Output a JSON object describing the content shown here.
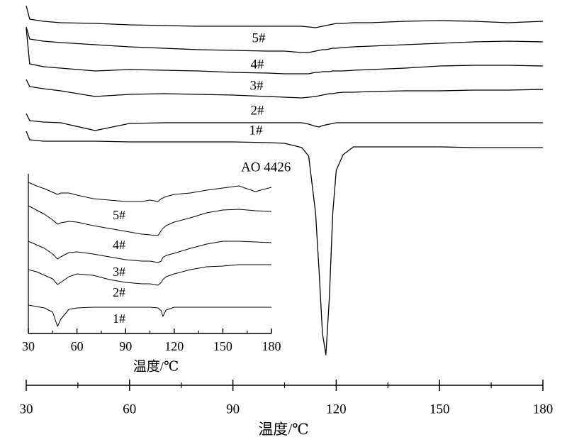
{
  "chart_data": [
    {
      "type": "line",
      "xlabel": "温度/℃",
      "x": [
        30,
        31,
        35,
        40,
        50,
        60,
        70,
        80,
        90,
        100,
        105,
        110,
        112,
        114,
        115,
        116,
        117,
        118,
        119,
        120,
        122,
        125,
        130,
        140,
        150,
        160,
        170,
        180
      ],
      "xlim": [
        30,
        180
      ],
      "xticks": [
        30,
        60,
        90,
        120,
        150,
        180
      ],
      "xminorticks": [
        45,
        75,
        105,
        135,
        165
      ],
      "ylim": [
        0,
        51
      ],
      "series": [
        {
          "name": "5#",
          "color": "#000000",
          "values": [
            50.2,
            48.3,
            48,
            47.8,
            47.7,
            47.5,
            47.4,
            47.3,
            47.3,
            47.3,
            47.3,
            47.3,
            47.2,
            47.1,
            47.2,
            47.3,
            47.4,
            47.5,
            47.6,
            47.7,
            47.7,
            47.8,
            47.8,
            48,
            48.1,
            48,
            47.8,
            48
          ]
        },
        {
          "name": "4#",
          "color": "#000000",
          "values": [
            47.2,
            45.5,
            45.2,
            45,
            44.7,
            44.4,
            44.2,
            44,
            43.9,
            43.8,
            43.8,
            43.6,
            43.6,
            43.8,
            43.9,
            44,
            44,
            44.1,
            44.2,
            44.2,
            44.3,
            44.4,
            44.5,
            44.7,
            44.9,
            45.1,
            45.2,
            45.1
          ]
        },
        {
          "name": "3#",
          "color": "#000000",
          "values": [
            47,
            42,
            41.6,
            41.4,
            41,
            41.2,
            41.1,
            41,
            40.8,
            40.7,
            40.6,
            40.6,
            40.6,
            40.8,
            40.8,
            40.9,
            40.9,
            40.9,
            41,
            41,
            41,
            41.1,
            41.2,
            41.4,
            41.7,
            41.8,
            41.8,
            41.7
          ]
        },
        {
          "name": "2#",
          "color": "#000000",
          "values": [
            39.8,
            38.8,
            38.5,
            38.2,
            37.4,
            37.7,
            37.8,
            37.7,
            37.6,
            37.4,
            37.3,
            37.2,
            37.3,
            37.4,
            37.5,
            37.6,
            37.7,
            37.8,
            37.8,
            37.9,
            38,
            38,
            38.1,
            38.2,
            38.2,
            38.3,
            38.3,
            38.4
          ]
        },
        {
          "name": "1#",
          "color": "#000000",
          "values": [
            35,
            34,
            33.8,
            33.7,
            32.6,
            33.6,
            33.7,
            33.7,
            33.7,
            33.7,
            33.7,
            33.7,
            33.5,
            33.2,
            33.1,
            33.3,
            33.4,
            33.5,
            33.6,
            33.7,
            33.7,
            33.7,
            33.7,
            33.7,
            33.7,
            33.7,
            33.7,
            33.7
          ]
        },
        {
          "name": "AO 4426",
          "color": "#000000",
          "values": [
            32.5,
            31.3,
            31.1,
            31.1,
            31.1,
            31,
            31,
            31,
            31,
            30.9,
            30.8,
            30.2,
            29,
            21,
            13,
            4,
            1,
            9,
            21,
            27,
            29.2,
            30.3,
            30.3,
            30.3,
            30.3,
            30.2,
            30.2,
            30.2
          ]
        }
      ]
    },
    {
      "type": "line",
      "xlabel": "温度/℃",
      "x": [
        30,
        35,
        40,
        45,
        48,
        50,
        55,
        60,
        70,
        80,
        90,
        100,
        105,
        110,
        112,
        113,
        115,
        120,
        130,
        140,
        150,
        160,
        170,
        180
      ],
      "xlim": [
        30,
        180
      ],
      "xticks": [
        30,
        60,
        90,
        120,
        150,
        180
      ],
      "xminorticks": [
        45,
        75,
        105,
        135,
        165
      ],
      "ylim": [
        0,
        23
      ],
      "series": [
        {
          "name": "5#",
          "color": "#000000",
          "values": [
            21.3,
            20.8,
            20.4,
            19.9,
            19.6,
            19.8,
            19.8,
            19.5,
            19,
            18.8,
            18.6,
            18.6,
            18.8,
            18.6,
            19,
            19.1,
            19.3,
            19.6,
            19.8,
            20.2,
            20.5,
            20.8,
            20,
            20.6
          ]
        },
        {
          "name": "4#",
          "color": "#000000",
          "values": [
            18,
            17.4,
            16.8,
            16,
            15.4,
            15.6,
            15.8,
            15.7,
            15.2,
            14.8,
            14.4,
            14,
            13.9,
            13.8,
            14.5,
            14.8,
            15.2,
            15.7,
            16.3,
            17,
            17.4,
            17.5,
            17.3,
            17.2
          ]
        },
        {
          "name": "3#",
          "color": "#000000",
          "values": [
            13,
            12.5,
            12,
            11.2,
            10.5,
            10.8,
            11.4,
            11.5,
            11.2,
            10.8,
            10.4,
            10.2,
            10.2,
            10,
            10.2,
            10.7,
            11,
            11.3,
            12,
            12.6,
            13,
            13,
            12.9,
            12.8
          ]
        },
        {
          "name": "2#",
          "color": "#000000",
          "values": [
            9,
            8.7,
            8.2,
            7.7,
            6.9,
            7.2,
            8,
            8.4,
            8.2,
            7.6,
            7.2,
            7,
            7,
            6.8,
            7.2,
            7.6,
            8,
            8.4,
            9,
            9.4,
            9.5,
            9.7,
            9.7,
            9.7
          ]
        },
        {
          "name": "1#",
          "color": "#000000",
          "values": [
            4,
            3.8,
            3.6,
            3,
            1,
            2,
            3.4,
            3.6,
            3.7,
            3.7,
            3.7,
            3.7,
            3.7,
            3.6,
            3.2,
            2.4,
            3.3,
            3.7,
            3.7,
            3.7,
            3.7,
            3.7,
            3.7,
            3.7
          ]
        }
      ]
    }
  ]
}
